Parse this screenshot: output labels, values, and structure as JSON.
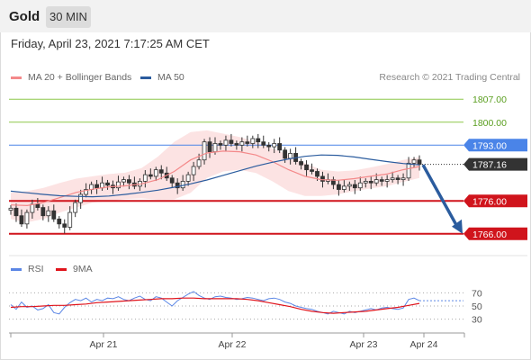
{
  "header": {
    "title": "Gold",
    "timeframe": "30 MIN"
  },
  "datetime": "Friday, April 23, 2021 7:17:25 AM CET",
  "legend": {
    "ma20": {
      "label": "MA 20 + Bollinger Bands",
      "color": "#f4898a"
    },
    "ma50": {
      "label": "MA 50",
      "color": "#2b5c9e"
    }
  },
  "credit": "Research © 2021 Trading Central",
  "chart_data": {
    "type": "line",
    "price_ylim": [
      1761,
      1812
    ],
    "price_levels": [
      {
        "value": 1807.0,
        "label": "1807.00",
        "kind": "target",
        "color": "#8ec74a"
      },
      {
        "value": 1800.0,
        "label": "1800.00",
        "kind": "target",
        "color": "#8ec74a"
      },
      {
        "value": 1793.0,
        "label": "1793.00",
        "kind": "pivot",
        "color": "#4a84e8"
      },
      {
        "value": 1776.0,
        "label": "1776.00",
        "kind": "support",
        "color": "#d0141c"
      },
      {
        "value": 1766.0,
        "label": "1766.00",
        "kind": "support",
        "color": "#d0141c"
      }
    ],
    "last_price": {
      "value": 1787.16,
      "label": "1787.16"
    },
    "forecast_arrow": {
      "from": 1787.0,
      "to": 1766.0
    },
    "x_ticks": [
      "Apr 21",
      "Apr 22",
      "Apr 23",
      "Apr 24"
    ],
    "ma50": [
      1779.0,
      1778.5,
      1778.0,
      1777.6,
      1777.4,
      1777.3,
      1777.5,
      1778.0,
      1778.6,
      1779.3,
      1780.2,
      1781.2,
      1782.4,
      1783.8,
      1785.2,
      1786.6,
      1787.8,
      1788.8,
      1789.6,
      1790.0,
      1789.9,
      1789.4,
      1788.7,
      1788.0,
      1787.4,
      1787.0
    ],
    "ma20": [
      1774.8,
      1774.6,
      1775.5,
      1777.0,
      1778.6,
      1779.6,
      1780.3,
      1780.6,
      1781.2,
      1782.5,
      1785.0,
      1788.5,
      1790.6,
      1791.2,
      1791.0,
      1790.0,
      1788.0,
      1785.5,
      1783.5,
      1782.5,
      1782.3,
      1782.8,
      1783.5,
      1784.2,
      1785.5,
      1786.5
    ],
    "bb_upper": [
      1778.5,
      1779.0,
      1780.0,
      1781.5,
      1782.8,
      1783.5,
      1784.2,
      1784.6,
      1786.0,
      1789.5,
      1794.0,
      1797.0,
      1797.5,
      1796.5,
      1795.5,
      1794.0,
      1792.0,
      1790.0,
      1787.5,
      1785.5,
      1785.0,
      1785.3,
      1786.2,
      1787.2,
      1788.5,
      1789.3
    ],
    "bb_lower": [
      1770.5,
      1769.5,
      1770.5,
      1772.5,
      1774.0,
      1775.5,
      1776.0,
      1776.6,
      1776.8,
      1776.4,
      1776.5,
      1778.5,
      1783.0,
      1785.0,
      1785.5,
      1784.5,
      1782.0,
      1779.0,
      1777.5,
      1777.5,
      1778.0,
      1779.0,
      1779.8,
      1780.5,
      1781.8,
      1783.0
    ],
    "close": [
      1773.8,
      1771.5,
      1769.0,
      1772.5,
      1775.0,
      1774.0,
      1771.5,
      1773.0,
      1770.5,
      1769.0,
      1768.0,
      1772.5,
      1775.5,
      1778.0,
      1779.5,
      1781.0,
      1780.0,
      1781.5,
      1780.8,
      1780.0,
      1781.8,
      1782.5,
      1781.5,
      1780.5,
      1782.0,
      1784.0,
      1783.5,
      1785.5,
      1784.5,
      1783.0,
      1781.5,
      1780.0,
      1782.0,
      1784.0,
      1786.5,
      1788.5,
      1794.0,
      1791.0,
      1793.5,
      1793.0,
      1794.5,
      1793.5,
      1793.0,
      1794.0,
      1793.5,
      1795.0,
      1794.0,
      1793.0,
      1792.5,
      1793.5,
      1791.5,
      1789.0,
      1790.5,
      1788.0,
      1787.0,
      1785.5,
      1785.0,
      1783.5,
      1782.0,
      1782.5,
      1781.0,
      1779.5,
      1780.5,
      1781.0,
      1780.0,
      1781.5,
      1782.0,
      1781.5,
      1782.5,
      1782.0,
      1782.5,
      1783.0,
      1782.5,
      1783.0,
      1787.5,
      1788.5,
      1787.16
    ],
    "rsi_ylim": [
      20,
      80
    ],
    "rsi_levels": [
      70,
      50,
      30
    ],
    "rsi": [
      52,
      45,
      56,
      48,
      50,
      44,
      46,
      52,
      40,
      38,
      48,
      55,
      60,
      58,
      62,
      56,
      60,
      58,
      62,
      61,
      64,
      60,
      58,
      62,
      65,
      60,
      58,
      64,
      62,
      56,
      50,
      58,
      63,
      68,
      72,
      66,
      62,
      60,
      64,
      65,
      63,
      62,
      60,
      61,
      63,
      62,
      60,
      58,
      61,
      62,
      60,
      56,
      54,
      50,
      48,
      46,
      45,
      42,
      40,
      38,
      42,
      40,
      38,
      42,
      40,
      42,
      44,
      46,
      44,
      47,
      48,
      46,
      45,
      47,
      60,
      62,
      58
    ],
    "rsi_9ma": [
      48,
      49,
      49,
      50,
      51,
      51,
      52,
      53,
      55,
      56,
      57,
      58,
      59,
      60,
      61,
      61,
      62,
      62,
      61,
      61,
      61,
      61,
      60,
      58,
      55,
      52,
      49,
      45,
      42,
      40,
      39,
      40,
      41,
      42,
      44,
      46,
      48,
      51,
      54
    ],
    "rsi_legend": [
      {
        "label": "RSI",
        "color": "#5b86e5"
      },
      {
        "label": "9MA",
        "color": "#e0141c"
      }
    ],
    "rsi_tick_labels": [
      "70",
      "50",
      "30"
    ]
  }
}
